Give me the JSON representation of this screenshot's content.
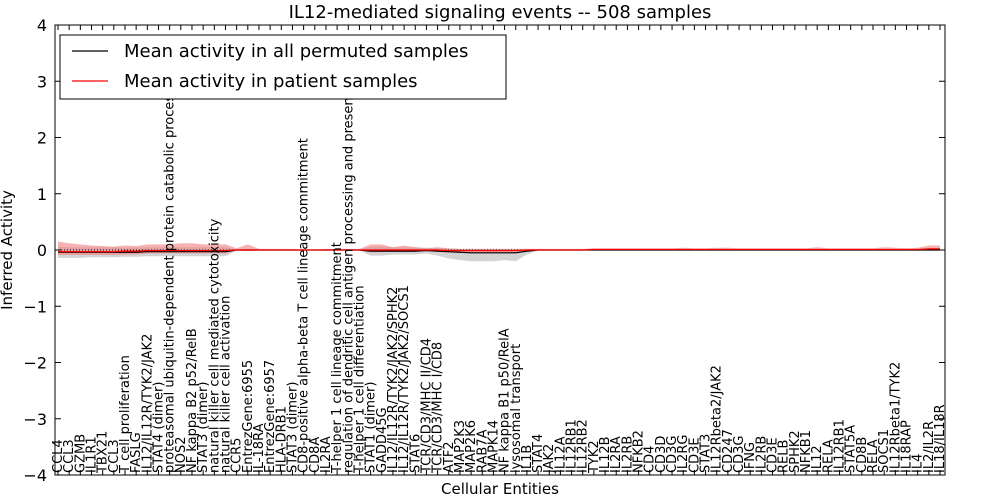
{
  "chart_data": {
    "type": "line",
    "title": "IL12-mediated signaling events -- 508 samples",
    "xlabel": "Cellular Entities",
    "ylabel": "Inferred Activity",
    "ylim": [
      -4,
      4
    ],
    "yticks": [
      -4,
      -3,
      -2,
      -1,
      0,
      1,
      2,
      3,
      4
    ],
    "ytick_labels": [
      "−4",
      "−3",
      "−2",
      "−1",
      "0",
      "1",
      "2",
      "3",
      "4"
    ],
    "legend": {
      "placement": "top-left",
      "entries": [
        {
          "label": "Mean activity in all permuted samples",
          "color": "#000000"
        },
        {
          "label": "Mean activity in patient samples",
          "color": "#ff0000"
        }
      ]
    },
    "colors": {
      "permuted_line": "#000000",
      "patient_line": "#ff0000",
      "permuted_band": "#c0c0c0",
      "patient_band": "#f08080"
    },
    "categories": [
      "CCL4",
      "CCL3",
      "GZMB",
      "IL1R1",
      "TBX21",
      "CCL3",
      "T cell proliferation",
      "FASLG",
      "IL12/IL12R/TYK2/JAK2",
      "STAT4 (dimer)",
      "proteasomal ubiquitin-dependent protein catabolic process",
      "NOS2",
      "NF kappa B2 p52/RelB",
      "STAT3 (dimer)",
      "natural killer cell mediated cytotoxicity",
      "natural killer cell activation",
      "CCR5",
      "EntrezGene:6955",
      "IL-18RA",
      "EntrezGene:6957",
      "HLA-DRB1",
      "STAT3 (dimer)",
      "CD8-positive alpha-beta T cell lineage commitment",
      "CD8A",
      "IL2RA",
      "T-helper 1 cell lineage commitment",
      "regulation of dendritic cell antigen processing and presentation",
      "T-helper 1 cell differentiation",
      "STAT1 (dimer)",
      "GADD45G",
      "IL12/IL12R/TYK2/JAK2/SPHK2",
      "IL12/IL12R/TYK2/JAK2/SOCS1",
      "STAT6",
      "TCR/CD3/MHC II/CD4",
      "TCR/CD3/MHC I/CD8",
      "ATF2",
      "MAP2K3",
      "MAP2K6",
      "RAB7A",
      "MAPK14",
      "NF kappa B1 p50/RelA",
      "lysosomal transport",
      "IL1B",
      "STAT4",
      "JAK2",
      "IL12A",
      "IL12RB1",
      "IL12RB2",
      "TYK2",
      "IL12B",
      "IL2RA",
      "IL2RB",
      "NFKB2",
      "CD4",
      "CD3D",
      "CD3G",
      "IL2RG",
      "CD3E",
      "STAT3",
      "IL12Rbeta2/JAK2",
      "CD247",
      "CD3G",
      "IFNG",
      "IL2RB",
      "CD3E",
      "RELB",
      "SPHK2",
      "NFKB1",
      "IL12",
      "RELA",
      "IL12RB1",
      "STAT5A",
      "CD8B",
      "RELA",
      "SOCS1",
      "IL12Rbeta1/TYK2",
      "IL18RAP",
      "IL4",
      "IL2/IL2R",
      "IL18/IL18R"
    ],
    "x": [
      0,
      1,
      2,
      3,
      4,
      5,
      6,
      7,
      8,
      9,
      10,
      11,
      12,
      13,
      14,
      15,
      16,
      17,
      18,
      19,
      20,
      21,
      22,
      23,
      24,
      25,
      26,
      27,
      28,
      29,
      30,
      31,
      32,
      33,
      34,
      35,
      36,
      37,
      38,
      39,
      40,
      41,
      42,
      43,
      44,
      45,
      46,
      47,
      48,
      49,
      50,
      51,
      52,
      53,
      54,
      55,
      56,
      57,
      58,
      59,
      60,
      61,
      62,
      63,
      64,
      65,
      66,
      67,
      68,
      69,
      70,
      71,
      72,
      73,
      74,
      75,
      76,
      77,
      78,
      79
    ],
    "xlim": [
      0,
      79
    ],
    "series": [
      {
        "name": "Mean activity in all permuted samples",
        "values": [
          -0.04,
          -0.04,
          -0.04,
          -0.04,
          -0.04,
          -0.04,
          -0.04,
          -0.04,
          -0.03,
          -0.03,
          -0.03,
          -0.03,
          -0.03,
          -0.03,
          -0.03,
          -0.03,
          0,
          0,
          0,
          0,
          0,
          0,
          0,
          0,
          0,
          0,
          0,
          0,
          -0.02,
          -0.02,
          -0.02,
          -0.02,
          -0.02,
          -0.01,
          -0.02,
          -0.03,
          -0.04,
          -0.05,
          -0.05,
          -0.05,
          -0.05,
          -0.05,
          -0.02,
          0,
          0,
          0,
          0,
          0,
          0,
          0,
          0,
          0,
          0,
          0,
          0,
          0,
          0,
          0,
          0,
          0,
          0,
          0,
          0,
          0,
          0,
          0,
          0,
          0,
          0,
          0,
          0,
          0,
          0,
          0,
          0,
          0,
          0,
          0,
          0,
          0
        ]
      },
      {
        "name": "Mean activity in patient samples",
        "values": [
          -0.03,
          -0.03,
          -0.03,
          -0.03,
          -0.03,
          -0.03,
          -0.02,
          -0.02,
          -0.01,
          -0.01,
          -0.01,
          -0.01,
          -0.01,
          -0.01,
          -0.01,
          -0.01,
          0,
          0,
          0,
          0,
          0,
          0,
          0,
          0,
          0,
          0,
          0,
          0,
          0,
          0,
          0,
          0,
          0,
          0,
          0,
          -0.01,
          -0.01,
          -0.01,
          -0.01,
          -0.01,
          -0.01,
          -0.01,
          0,
          0,
          0,
          0,
          0,
          0,
          0.01,
          0.01,
          0.01,
          0.01,
          0.01,
          0.01,
          0.01,
          0.01,
          0.01,
          0.01,
          0.01,
          0.01,
          0.01,
          0.01,
          0.01,
          0.01,
          0.01,
          0.01,
          0.01,
          0.01,
          0.01,
          0.01,
          0.01,
          0.01,
          0.01,
          0.01,
          0.01,
          0.01,
          0.01,
          0.01,
          0.02,
          0.02
        ]
      }
    ],
    "bands": [
      {
        "name": "permuted-band",
        "lower": [
          -0.14,
          -0.14,
          -0.14,
          -0.13,
          -0.13,
          -0.13,
          -0.12,
          -0.12,
          -0.11,
          -0.11,
          -0.11,
          -0.11,
          -0.11,
          -0.11,
          -0.11,
          -0.11,
          -0.01,
          -0.02,
          -0.01,
          -0.01,
          -0.01,
          -0.01,
          -0.01,
          -0.01,
          -0.01,
          -0.01,
          -0.01,
          -0.01,
          -0.1,
          -0.1,
          -0.08,
          -0.08,
          -0.08,
          -0.06,
          -0.1,
          -0.15,
          -0.18,
          -0.2,
          -0.2,
          -0.2,
          -0.18,
          -0.2,
          -0.08,
          -0.01,
          -0.01,
          -0.01,
          -0.01,
          -0.01,
          -0.01,
          -0.01,
          -0.01,
          -0.01,
          -0.01,
          -0.01,
          -0.01,
          -0.01,
          -0.01,
          -0.01,
          -0.01,
          -0.01,
          -0.01,
          -0.01,
          -0.01,
          -0.01,
          -0.01,
          -0.01,
          -0.01,
          -0.01,
          -0.01,
          -0.01,
          -0.01,
          -0.01,
          -0.01,
          -0.01,
          -0.01,
          -0.01,
          -0.01,
          -0.01,
          -0.01,
          -0.01
        ],
        "upper": [
          0.06,
          0.05,
          0.05,
          0.05,
          0.05,
          0.05,
          0.04,
          0.04,
          0.05,
          0.05,
          0.05,
          0.05,
          0.05,
          0.05,
          0.05,
          0.05,
          0.01,
          0.02,
          0.01,
          0.01,
          0.01,
          0.01,
          0.01,
          0.01,
          0.01,
          0.01,
          0.01,
          0.01,
          0.06,
          0.06,
          0.05,
          0.05,
          0.05,
          0.04,
          0.04,
          0.02,
          0.02,
          0.02,
          0.02,
          0.02,
          0.02,
          0.02,
          0.02,
          0.01,
          0.01,
          0.01,
          0.01,
          0.01,
          0.01,
          0.01,
          0.01,
          0.01,
          0.01,
          0.01,
          0.01,
          0.01,
          0.01,
          0.01,
          0.01,
          0.01,
          0.01,
          0.01,
          0.01,
          0.01,
          0.01,
          0.01,
          0.01,
          0.01,
          0.01,
          0.01,
          0.01,
          0.01,
          0.01,
          0.01,
          0.01,
          0.01,
          0.01,
          0.01,
          0.01,
          0.01
        ]
      },
      {
        "name": "patient-band",
        "lower": [
          -0.09,
          -0.09,
          -0.09,
          -0.09,
          -0.09,
          -0.09,
          -0.08,
          -0.08,
          -0.06,
          -0.06,
          -0.06,
          -0.06,
          -0.06,
          -0.06,
          -0.06,
          -0.06,
          -0.01,
          -0.02,
          -0.01,
          -0.01,
          -0.01,
          -0.01,
          -0.01,
          -0.01,
          -0.01,
          -0.01,
          -0.01,
          -0.01,
          -0.04,
          -0.04,
          -0.03,
          -0.04,
          -0.03,
          -0.02,
          -0.03,
          -0.05,
          -0.05,
          -0.06,
          -0.06,
          -0.06,
          -0.06,
          -0.06,
          -0.03,
          -0.01,
          -0.01,
          -0.01,
          -0.01,
          -0.01,
          0,
          0,
          0,
          0,
          0,
          0,
          0,
          0,
          0,
          0,
          0,
          0,
          0,
          0,
          0,
          0,
          0,
          0,
          0,
          0,
          0,
          0,
          0,
          0,
          0,
          0,
          0,
          0,
          0,
          0,
          0,
          0
        ],
        "upper": [
          0.15,
          0.12,
          0.1,
          0.08,
          0.07,
          0.06,
          0.08,
          0.07,
          0.1,
          0.1,
          0.1,
          0.12,
          0.12,
          0.1,
          0.1,
          0.1,
          0.03,
          0.1,
          0.02,
          0.02,
          0.02,
          0.02,
          0.01,
          0.01,
          0.02,
          0.02,
          0.02,
          0.02,
          0.1,
          0.1,
          0.05,
          0.08,
          0.05,
          0.03,
          0.05,
          0.03,
          0.02,
          0.02,
          0.02,
          0.02,
          0.02,
          0.02,
          0.02,
          0.02,
          0.02,
          0.02,
          0.02,
          0.02,
          0.03,
          0.03,
          0.03,
          0.03,
          0.03,
          0.03,
          0.03,
          0.03,
          0.04,
          0.03,
          0.03,
          0.04,
          0.04,
          0.03,
          0.03,
          0.03,
          0.03,
          0.03,
          0.03,
          0.03,
          0.05,
          0.03,
          0.03,
          0.03,
          0.03,
          0.03,
          0.05,
          0.04,
          0.03,
          0.04,
          0.08,
          0.08
        ]
      }
    ]
  }
}
